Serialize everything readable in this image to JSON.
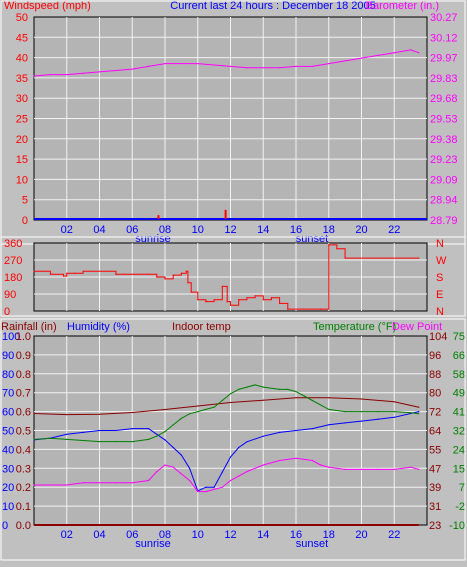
{
  "header": {
    "left_title": "Windspeed (mph)",
    "center_title": "Current last 24 hours : December 18 2005",
    "right_title": "Barometer (in.)"
  },
  "colors": {
    "background": "#c0c0c0",
    "plot_background": "#b4b4b4",
    "grid": "#f2f2f2",
    "wind": "#ff0000",
    "wind_axis": "#0000ff",
    "barometer": "#ff00ff",
    "direction": "#ff0000",
    "rain": "#8b0000",
    "humidity": "#0000ff",
    "indoor": "#8b0000",
    "temperature": "#008000",
    "dewpoint": "#ff00ff"
  },
  "x_axis": {
    "hour_labels": [
      "02",
      "04",
      "06",
      "08",
      "10",
      "12",
      "14",
      "16",
      "18",
      "20",
      "22"
    ],
    "sunrise_label": "sunrise",
    "sunset_label": "sunset"
  },
  "chart_data": [
    {
      "id": "wind-barometer",
      "type": "line",
      "xlabel": "",
      "y_left": {
        "label": "Windspeed (mph)",
        "ticks": [
          "0",
          "5",
          "10",
          "15",
          "20",
          "25",
          "30",
          "35",
          "40",
          "45",
          "50"
        ],
        "ylim": [
          0,
          50
        ]
      },
      "y_right": {
        "label": "Barometer (in.)",
        "ticks": [
          "28.79",
          "28.94",
          "29.09",
          "29.23",
          "29.38",
          "29.53",
          "29.68",
          "29.83",
          "29.97",
          "30.12",
          "30.27"
        ],
        "ylim": [
          28.79,
          30.27
        ]
      },
      "series": [
        {
          "name": "Windspeed (mph)",
          "axis": "left",
          "kind": "bar",
          "x": [
            7.6,
            11.7
          ],
          "y": [
            1.2,
            2.5
          ]
        },
        {
          "name": "Barometer (in.)",
          "axis": "right",
          "kind": "line",
          "x": [
            0,
            1,
            2,
            3,
            4,
            5,
            6,
            7,
            8,
            9,
            10,
            11,
            12,
            13,
            14,
            15,
            16,
            17,
            18,
            19,
            20,
            21,
            22,
            23,
            23.5
          ],
          "y": [
            29.84,
            29.85,
            29.85,
            29.86,
            29.87,
            29.88,
            29.89,
            29.91,
            29.93,
            29.93,
            29.93,
            29.92,
            29.91,
            29.9,
            29.9,
            29.9,
            29.91,
            29.91,
            29.93,
            29.95,
            29.97,
            29.99,
            30.01,
            30.03,
            30.01
          ]
        }
      ]
    },
    {
      "id": "wind-direction",
      "type": "line",
      "y_left": {
        "label": "",
        "ticks": [
          "0",
          "90",
          "180",
          "270",
          "360"
        ],
        "ylim": [
          0,
          360
        ]
      },
      "y_right": {
        "label": "",
        "ticks": [
          "N",
          "E",
          "S",
          "W",
          "N"
        ],
        "ylim": [
          0,
          360
        ]
      },
      "series": [
        {
          "name": "",
          "axis": "left",
          "kind": "step",
          "x": [
            0,
            1.0,
            1.8,
            2.0,
            2.5,
            3.0,
            5.0,
            5.5,
            6.0,
            7.0,
            7.5,
            8.0,
            8.5,
            9.0,
            9.3,
            9.4,
            9.6,
            10.0,
            10.5,
            11.0,
            11.5,
            11.8,
            12.0,
            12.5,
            13.0,
            13.5,
            14.0,
            14.5,
            15.0,
            15.5,
            17.5,
            18.0,
            18.5,
            19.0,
            23.5
          ],
          "y": [
            210,
            195,
            185,
            200,
            200,
            210,
            195,
            195,
            195,
            195,
            180,
            170,
            190,
            200,
            210,
            150,
            100,
            60,
            50,
            60,
            130,
            50,
            30,
            60,
            70,
            80,
            60,
            70,
            40,
            10,
            10,
            350,
            330,
            280,
            280
          ]
        }
      ]
    },
    {
      "id": "rain-humidity-temp",
      "type": "line",
      "xlabel": "",
      "y_axes": [
        {
          "label": "Rainfall (in)",
          "ticks": [
            "0.0",
            "0.1",
            "0.2",
            "0.3",
            "0.4",
            "0.5",
            "0.6",
            "0.7",
            "0.8",
            "0.9",
            "1.0"
          ],
          "ylim": [
            0,
            1.0
          ]
        },
        {
          "label": "Humidity (%)",
          "ticks": [
            "0",
            "10",
            "20",
            "30",
            "40",
            "50",
            "60",
            "70",
            "80",
            "90",
            "100"
          ],
          "ylim": [
            0,
            100
          ]
        },
        {
          "label": "Indoor temp",
          "ticks": [
            "23",
            "31",
            "39",
            "47",
            "55",
            "64",
            "72",
            "80",
            "88",
            "96",
            "104"
          ],
          "ylim": [
            23,
            104
          ]
        },
        {
          "label": "Temperature (°F)",
          "ticks": [
            "-10",
            "-2",
            "7",
            "15",
            "24",
            "32",
            "41",
            "49",
            "58",
            "66",
            "75"
          ],
          "ylim": [
            -10,
            75
          ]
        },
        {
          "label": "Dew Point",
          "ticks": [],
          "ylim": [
            -10,
            75
          ]
        }
      ],
      "series": [
        {
          "name": "Rainfall (in)",
          "axis": 0,
          "x": [
            0,
            23.5
          ],
          "y": [
            0.0,
            0.0
          ]
        },
        {
          "name": "Humidity (%)",
          "axis": 1,
          "x": [
            0,
            1,
            2,
            3,
            4,
            5,
            6,
            7,
            7.5,
            8,
            8.5,
            9,
            9.5,
            10,
            10.5,
            11,
            11.5,
            12,
            12.5,
            13,
            14,
            15,
            16,
            17,
            18,
            19,
            20,
            21,
            22,
            23,
            23.5
          ],
          "y": [
            45,
            46,
            48,
            49,
            50,
            50,
            51,
            51,
            48,
            45,
            41,
            37,
            30,
            18,
            20,
            20,
            28,
            36,
            41,
            44,
            47,
            49,
            50,
            51,
            53,
            54,
            55,
            56,
            57,
            59,
            60
          ]
        },
        {
          "name": "Indoor temp",
          "axis": 2,
          "x": [
            0,
            2,
            4,
            6,
            8,
            10,
            12,
            14,
            16,
            18,
            20,
            22,
            23.5
          ],
          "y": [
            70.8,
            70.3,
            70.5,
            71.2,
            72.5,
            74.0,
            75.5,
            76.5,
            77.5,
            77.5,
            77.0,
            75.8,
            73.5
          ]
        },
        {
          "name": "Temperature (°F)",
          "axis": 3,
          "x": [
            0,
            1,
            2,
            3,
            4,
            5,
            6,
            7,
            7.5,
            8,
            8.5,
            9,
            9.5,
            10,
            10.5,
            11,
            11.5,
            12,
            12.5,
            13,
            13.5,
            14,
            15,
            15.5,
            16,
            16.5,
            17,
            18,
            19,
            20,
            21,
            22,
            23,
            23.5
          ],
          "y": [
            28.5,
            29,
            28.5,
            28,
            27.5,
            27.5,
            27.5,
            28.5,
            30,
            32,
            35,
            38,
            40,
            41,
            42,
            43,
            46,
            49,
            51,
            52,
            53,
            52,
            51,
            51,
            50,
            48,
            46,
            42,
            41,
            41,
            41,
            41,
            40.5,
            40
          ]
        },
        {
          "name": "Dew Point",
          "axis": 4,
          "x": [
            0,
            1,
            2,
            3,
            4,
            5,
            6,
            7,
            7.5,
            8,
            8.5,
            9,
            9.5,
            10,
            10.5,
            11,
            11.5,
            12,
            12.5,
            13,
            14,
            15,
            16,
            17,
            17.5,
            18,
            19,
            20,
            21,
            22,
            23,
            23.5
          ],
          "y": [
            8,
            8,
            8,
            9,
            9,
            9,
            9,
            10,
            14,
            17,
            16,
            13,
            10,
            5,
            5,
            6,
            7,
            10,
            12,
            14,
            17,
            19,
            20,
            19,
            17,
            16,
            15,
            15,
            15,
            15,
            16,
            15
          ]
        }
      ]
    }
  ]
}
